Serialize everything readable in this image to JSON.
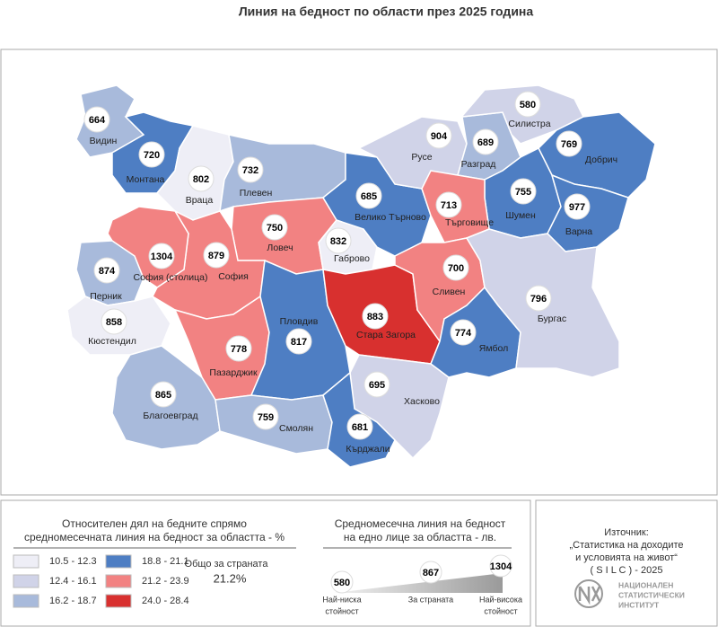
{
  "title": "Линия на бедност по области през 2025 година",
  "regions": [
    {
      "name": "Видин",
      "value": 664,
      "color": "#a8badb"
    },
    {
      "name": "Монтана",
      "value": 720,
      "color": "#4e7ec3"
    },
    {
      "name": "Враца",
      "value": 802,
      "color": "#eeeef6"
    },
    {
      "name": "Плевен",
      "value": 732,
      "color": "#a8badb"
    },
    {
      "name": "Ловеч",
      "value": 750,
      "color": "#f28282"
    },
    {
      "name": "Габрово",
      "value": 832,
      "color": "#eeeef6"
    },
    {
      "name": "Велико Търново",
      "value": 685,
      "color": "#4e7ec3"
    },
    {
      "name": "Русе",
      "value": 904,
      "color": "#d0d3e8"
    },
    {
      "name": "Разград",
      "value": 689,
      "color": "#a8badb"
    },
    {
      "name": "Силистра",
      "value": 580,
      "color": "#d0d3e8"
    },
    {
      "name": "Добрич",
      "value": 769,
      "color": "#4e7ec3"
    },
    {
      "name": "Шумен",
      "value": 755,
      "color": "#4e7ec3"
    },
    {
      "name": "Търговище",
      "value": 713,
      "color": "#f28282"
    },
    {
      "name": "Варна",
      "value": 977,
      "color": "#4e7ec3"
    },
    {
      "name": "Перник",
      "value": 874,
      "color": "#a8badb"
    },
    {
      "name": "София (столица)",
      "value": 1304,
      "color": "#f28282"
    },
    {
      "name": "София",
      "value": 879,
      "color": "#f28282"
    },
    {
      "name": "Кюстендил",
      "value": 858,
      "color": "#eeeef6"
    },
    {
      "name": "Благоевград",
      "value": 865,
      "color": "#a8badb"
    },
    {
      "name": "Пазарджик",
      "value": 778,
      "color": "#f28282"
    },
    {
      "name": "Пловдив",
      "value": 817,
      "color": "#4e7ec3"
    },
    {
      "name": "Смолян",
      "value": 759,
      "color": "#a8badb"
    },
    {
      "name": "Стара Загора",
      "value": 883,
      "color": "#d8302f"
    },
    {
      "name": "Хасково",
      "value": 695,
      "color": "#d0d3e8"
    },
    {
      "name": "Кърджали",
      "value": 681,
      "color": "#4e7ec3"
    },
    {
      "name": "Сливен",
      "value": 700,
      "color": "#f28282"
    },
    {
      "name": "Ямбол",
      "value": 774,
      "color": "#4e7ec3"
    },
    {
      "name": "Бургас",
      "value": 796,
      "color": "#d0d3e8"
    }
  ],
  "legend_share": {
    "title": [
      "Относителен дял на бедните спрямо",
      "средномесечната линия на бедност за областта - %"
    ],
    "classes": [
      {
        "label": "10.5 - 12.3",
        "color": "#eeeef6"
      },
      {
        "label": "12.4 - 16.1",
        "color": "#d0d3e8"
      },
      {
        "label": "16.2 - 18.7",
        "color": "#a8badb"
      },
      {
        "label": "18.8 - 21.1",
        "color": "#4e7ec3"
      },
      {
        "label": "21.2 - 23.9",
        "color": "#f28282"
      },
      {
        "label": "24.0 - 28.4",
        "color": "#d8302f"
      }
    ],
    "national": {
      "label": "Общо за страната",
      "value": "21.2%"
    }
  },
  "legend_line": {
    "title": [
      "Средномесечна линия на бедност",
      "на едно лице за областта - лв."
    ],
    "items": [
      {
        "value": 580,
        "label": [
          "Най-ниска",
          "стойност"
        ]
      },
      {
        "value": 867,
        "label": [
          "За страната"
        ]
      },
      {
        "value": 1304,
        "label": [
          "Най-висока",
          "стойност"
        ]
      }
    ]
  },
  "source": {
    "lines": [
      "Източник:",
      "„Статистика на доходите",
      "и условията на живот“",
      "( S I L C ) - 2025"
    ],
    "logo": [
      "НАЦИОНАЛЕН",
      "СТАТИСТИЧЕСКИ",
      "ИНСТИТУТ"
    ]
  }
}
